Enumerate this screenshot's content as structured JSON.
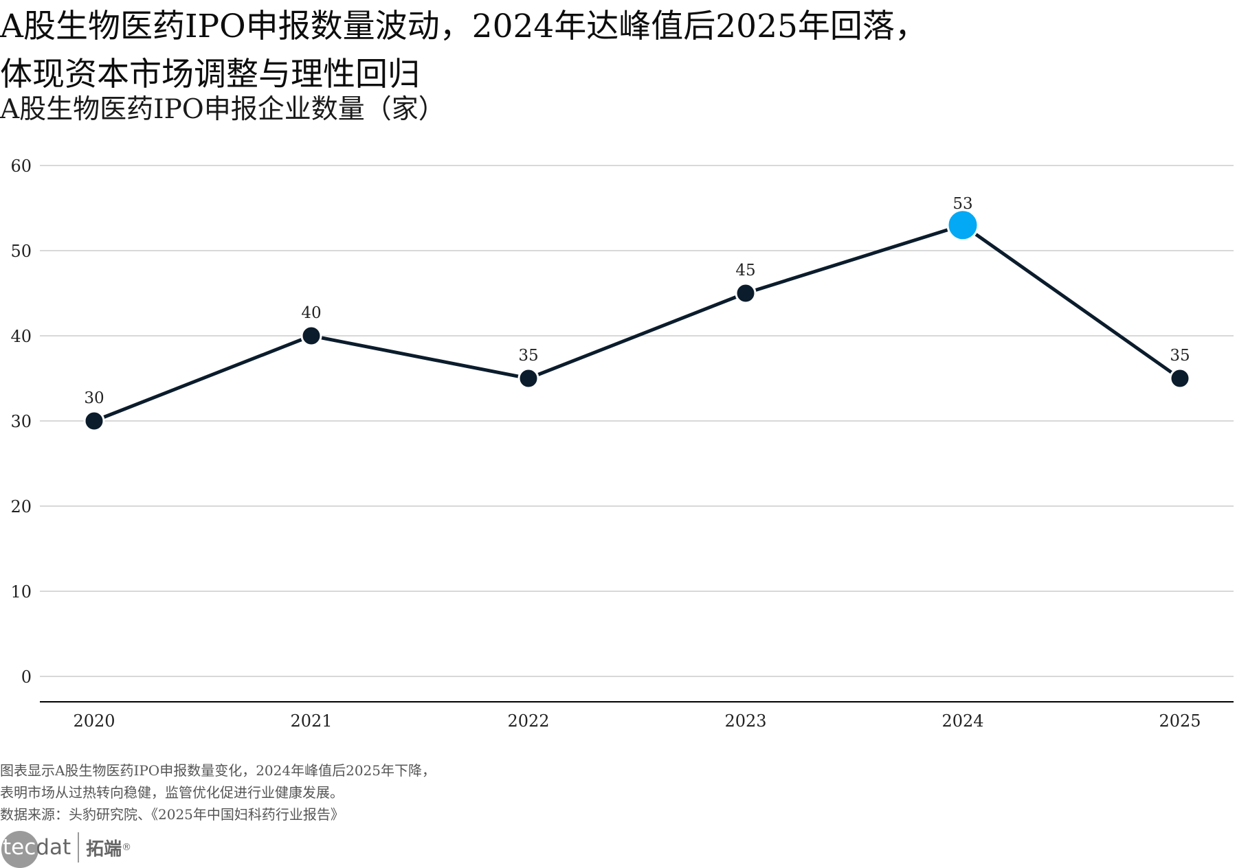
{
  "header": {
    "title_line1": "A股生物医药IPO申报数量波动，2024年达峰值后2025年回落，",
    "title_line2": "体现资本市场调整与理性回归",
    "subtitle": "A股生物医药IPO申报企业数量（家）"
  },
  "chart_data": {
    "type": "line",
    "title": "A股生物医药IPO申报企业数量（家）",
    "xlabel": "",
    "ylabel": "",
    "categories": [
      "2020",
      "2021",
      "2022",
      "2023",
      "2024",
      "2025"
    ],
    "series": [
      {
        "name": "A股生物医药IPO申报企业数量",
        "values": [
          30,
          40,
          35,
          45,
          53,
          35
        ]
      }
    ],
    "data_labels": [
      "30",
      "40",
      "35",
      "45",
      "53",
      "35"
    ],
    "highlight_index": 4,
    "ylim": [
      0,
      60
    ],
    "yticks": [
      0,
      10,
      20,
      30,
      40,
      50,
      60
    ],
    "ytick_labels": [
      "0",
      "10",
      "20",
      "30",
      "40",
      "50",
      "60"
    ],
    "grid": true,
    "legend": "none"
  },
  "colors": {
    "line": "#0b1c2c",
    "marker": "#0b1c2c",
    "highlight": "#03a9f4",
    "grid": "#cccccc",
    "axis": "#000000"
  },
  "footer": {
    "note_line1": "图表显示A股生物医药IPO申报数量变化，2024年峰值后2025年下降，",
    "note_line2": "表明市场从过热转向稳健，监管优化促进行业健康发展。",
    "source": "数据来源：头豹研究院、《2025年中国妇科药行业报告》",
    "logo_tec": "tec",
    "logo_dat": "dat",
    "logo_cn": "拓端",
    "logo_reg": "®"
  }
}
